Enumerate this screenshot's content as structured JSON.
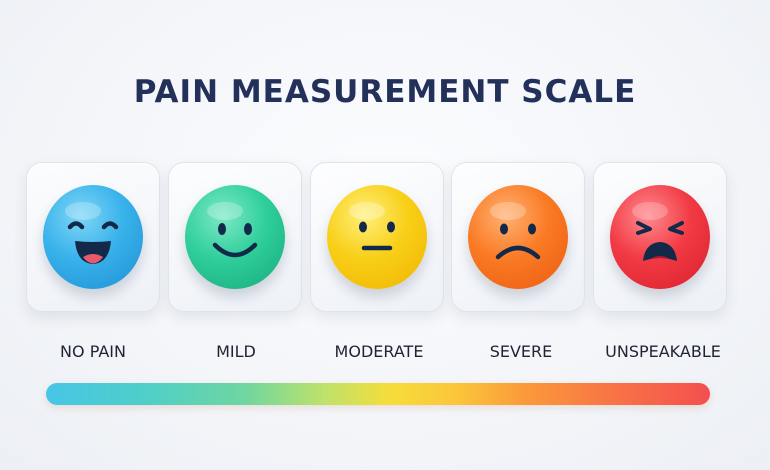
{
  "title": "PAIN MEASUREMENT SCALE",
  "levels": [
    {
      "label": "NO PAIN",
      "face": "laughing-face-icon",
      "color": "#35a9e6"
    },
    {
      "label": "MILD",
      "face": "smiling-face-icon",
      "color": "#2fcf9b"
    },
    {
      "label": "MODERATE",
      "face": "neutral-face-icon",
      "color": "#f8cf17"
    },
    {
      "label": "SEVERE",
      "face": "frowning-face-icon",
      "color": "#fa7a24"
    },
    {
      "label": "UNSPEAKABLE",
      "face": "anguished-face-icon",
      "color": "#f23a44"
    }
  ],
  "scale_bar_colors": [
    "#47c6e6",
    "#6fd6a0",
    "#f6dd3a",
    "#fb9a3a",
    "#f44f4f"
  ]
}
